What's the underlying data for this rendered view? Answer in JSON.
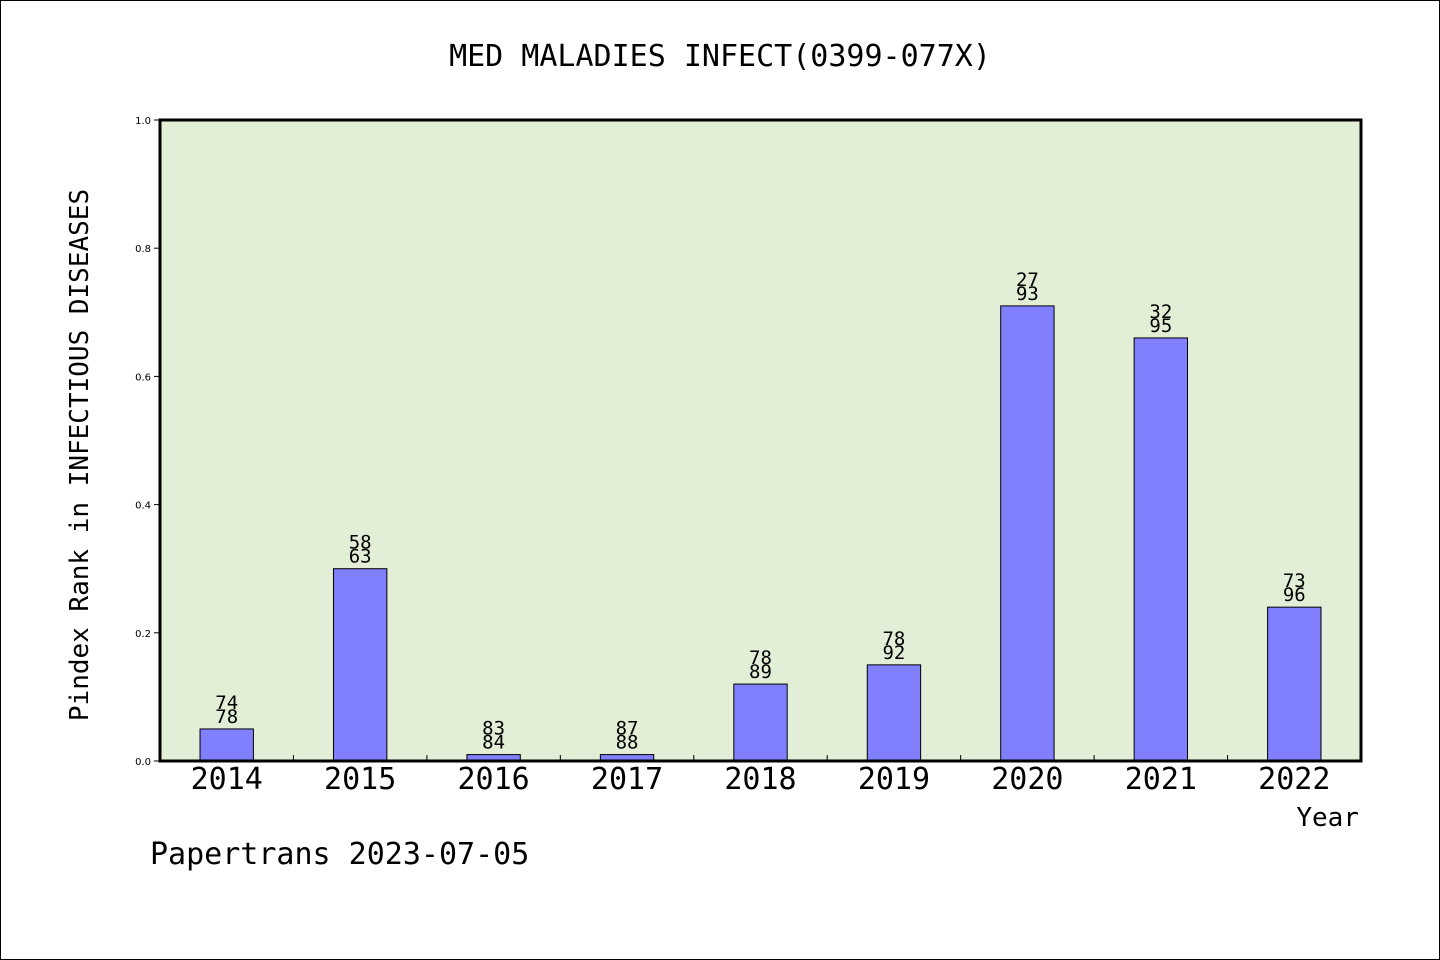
{
  "chart_data": {
    "type": "bar",
    "title": "MED MALADIES INFECT(0399-077X)",
    "xlabel": "Year",
    "ylabel": "Pindex Rank in INFECTIOUS DISEASES",
    "ylim": [
      0.0,
      1.0
    ],
    "yticks": [
      "0.0",
      "0.2",
      "0.4",
      "0.6",
      "0.8",
      "1.0"
    ],
    "grid": false,
    "categories": [
      "2014",
      "2015",
      "2016",
      "2017",
      "2018",
      "2019",
      "2020",
      "2021",
      "2022"
    ],
    "values": [
      0.05,
      0.3,
      0.01,
      0.01,
      0.12,
      0.15,
      0.71,
      0.66,
      0.24
    ],
    "labels_top": [
      "74",
      "58",
      "83",
      "87",
      "78",
      "78",
      "27",
      "32",
      "73"
    ],
    "labels_bottom": [
      "78",
      "63",
      "84",
      "88",
      "89",
      "92",
      "93",
      "95",
      "96"
    ],
    "colors": {
      "plot_background": "#e2efd6",
      "bar_fill": "#8080ff",
      "bar_stroke": "#000000"
    }
  },
  "footer": "Papertrans 2023-07-05"
}
